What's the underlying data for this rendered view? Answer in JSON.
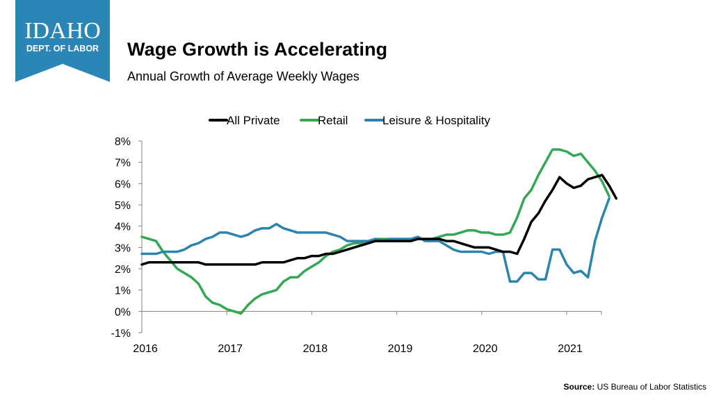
{
  "header": {
    "org_name": "IDAHO",
    "org_sub": "DEPT. OF LABOR",
    "title": "Wage Growth is Accelerating",
    "subtitle": "Annual Growth of Average Weekly Wages"
  },
  "source": {
    "label": "Source:",
    "text": "US Bureau of Labor Statistics"
  },
  "colors": {
    "logo_bg": "#2a86b5",
    "all_private": "#000000",
    "retail": "#33a852",
    "leisure": "#2b84ae"
  },
  "chart_data": {
    "type": "line",
    "title": "",
    "xlabel": "",
    "ylabel": "",
    "x_start": "2016",
    "x_ticks": [
      "2016",
      "2017",
      "2018",
      "2019",
      "2020",
      "2021"
    ],
    "x_range_months": [
      0,
      64
    ],
    "y_ticks": [
      "8%",
      "7%",
      "6%",
      "5%",
      "4%",
      "3%",
      "2%",
      "1%",
      "0%",
      "-1%"
    ],
    "ylim": [
      -1,
      8
    ],
    "legend_position": "top-center",
    "series": [
      {
        "name": "All Private",
        "color": "#000000",
        "values": [
          2.2,
          2.3,
          2.3,
          2.3,
          2.3,
          2.3,
          2.3,
          2.3,
          2.3,
          2.2,
          2.2,
          2.2,
          2.2,
          2.2,
          2.2,
          2.2,
          2.2,
          2.3,
          2.3,
          2.3,
          2.3,
          2.4,
          2.5,
          2.5,
          2.6,
          2.6,
          2.7,
          2.7,
          2.8,
          2.9,
          3.0,
          3.1,
          3.2,
          3.3,
          3.3,
          3.3,
          3.3,
          3.3,
          3.3,
          3.4,
          3.4,
          3.4,
          3.4,
          3.3,
          3.3,
          3.2,
          3.1,
          3.0,
          3.0,
          3.0,
          2.9,
          2.8,
          2.8,
          2.7,
          3.4,
          4.2,
          4.6,
          5.2,
          5.7,
          6.3,
          6.0,
          5.8,
          5.9,
          6.2,
          6.3,
          6.4,
          5.9,
          5.3
        ]
      },
      {
        "name": "Retail",
        "color": "#33a852",
        "values": [
          3.5,
          3.4,
          3.3,
          2.8,
          2.4,
          2.0,
          1.8,
          1.6,
          1.3,
          0.7,
          0.4,
          0.3,
          0.1,
          0.0,
          -0.1,
          0.3,
          0.6,
          0.8,
          0.9,
          1.0,
          1.4,
          1.6,
          1.6,
          1.9,
          2.1,
          2.3,
          2.6,
          2.8,
          2.9,
          3.1,
          3.2,
          3.2,
          3.3,
          3.4,
          3.4,
          3.4,
          3.4,
          3.4,
          3.4,
          3.4,
          3.4,
          3.4,
          3.5,
          3.6,
          3.6,
          3.7,
          3.8,
          3.8,
          3.7,
          3.7,
          3.6,
          3.6,
          3.7,
          4.4,
          5.3,
          5.7,
          6.4,
          7.0,
          7.6,
          7.6,
          7.5,
          7.3,
          7.4,
          7.0,
          6.6,
          6.1,
          5.4
        ]
      },
      {
        "name": "Leisure & Hospitality",
        "color": "#2b84ae",
        "values": [
          2.7,
          2.7,
          2.7,
          2.8,
          2.8,
          2.8,
          2.9,
          3.1,
          3.2,
          3.4,
          3.5,
          3.7,
          3.7,
          3.6,
          3.5,
          3.6,
          3.8,
          3.9,
          3.9,
          4.1,
          3.9,
          3.8,
          3.7,
          3.7,
          3.7,
          3.7,
          3.7,
          3.6,
          3.5,
          3.3,
          3.3,
          3.3,
          3.3,
          3.4,
          3.3,
          3.4,
          3.4,
          3.4,
          3.4,
          3.5,
          3.3,
          3.3,
          3.3,
          3.1,
          2.9,
          2.8,
          2.8,
          2.8,
          2.8,
          2.7,
          2.8,
          2.8,
          1.4,
          1.4,
          1.8,
          1.8,
          1.5,
          1.5,
          2.9,
          2.9,
          2.2,
          1.8,
          1.9,
          1.6,
          3.3,
          4.4,
          5.3
        ]
      }
    ]
  }
}
